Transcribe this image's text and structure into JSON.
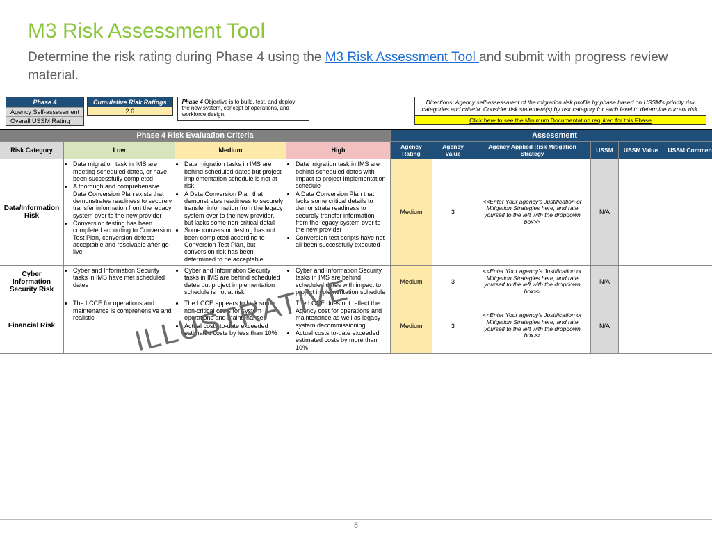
{
  "colors": {
    "accent": "#8cc63f",
    "link": "#1f6fd4",
    "navy": "#1f4e79",
    "grey": "#808080",
    "low": "#d8e4bc",
    "med": "#fde9a9",
    "high": "#f2c0c0"
  },
  "title": "M3 Risk Assessment Tool",
  "subtitle_pre": "Determine the risk rating during Phase 4 using the ",
  "subtitle_link": "M3 Risk Assessment Tool ",
  "subtitle_post": "and submit with progress review material.",
  "phase_box": {
    "header": "Phase 4",
    "r1": "Agency Self-assessment",
    "r2": "Overall USSM Rating"
  },
  "cum_box": {
    "header": "Cumulative Risk Ratings",
    "value": "2.6"
  },
  "obj_box": {
    "label": "Phase 4",
    "text": "Objective is to build, test, and deploy the new system, concept of operations, and workforce design."
  },
  "dir_box": {
    "text": "Directions: Agency self-assessment of the migration risk profile by phase based on USSM's priority risk categories and criteria. Consider risk statement(s) by risk category for each level to determine current risk.",
    "link": "Click here to see the Minimum Documentation required for this Phase"
  },
  "bands": {
    "left": "Phase 4 Risk Evaluation Criteria",
    "right": "Assessment"
  },
  "cols": {
    "cat": "Risk Category",
    "low": "Low",
    "med": "Medium",
    "high": "High",
    "ar": "Agency Rating",
    "av": "Agency Value",
    "mit": "Agency Applied Risk Mitigation Strategy",
    "u": "USSM",
    "uv": "USSM Value",
    "uc": "USSM Comment"
  },
  "mit_placeholder": "<<Enter Your agency's Justification or Mitigation Strategies here, and rate yourself to the left with the dropdown box>>",
  "rows": [
    {
      "cat": "Data/Information Risk",
      "low": "• Data migration task in IMS are meeting scheduled dates, or have been successfully completed\n• A thorough and comprehensive Data Conversion Plan exists that demonstrates readiness to securely transfer information from the legacy system over to the new provider\n• Conversion testing has been completed according to Conversion Test Plan, conversion defects acceptable and resolvable after go-live",
      "med": "• Data migration tasks in IMS are behind scheduled dates but project implementation schedule is not at risk\n• A Data Conversion Plan that demonstrates readiness to securely transfer information from the legacy system over to the new provider, but lacks some non-critical detail\n• Some conversion testing has not been completed according to Conversion Test Plan, but conversion risk has been determined to be acceptable",
      "high": "• Data migration task in IMS are behind scheduled dates with impact to project implementation schedule\n• A Data Conversion Plan that lacks some critical details to demonstrate readiness to securely transfer information from the legacy system over to the new provider\n• Conversion test scripts have not all been successfully executed",
      "ar": "Medium",
      "av": "3",
      "u": "N/A"
    },
    {
      "cat": "Cyber Information Security Risk",
      "low": "• Cyber and Information Security tasks in IMS have met scheduled dates",
      "med": "• Cyber and Information Security tasks in IMS are behind scheduled dates but project implementation schedule is not at risk",
      "high": "• Cyber and Information Security tasks in IMS are behind scheduled dates with impact to project implementation schedule",
      "ar": "Medium",
      "av": "3",
      "u": "N/A"
    },
    {
      "cat": "Financial Risk",
      "low": "• The LCCE for operations and maintenance is comprehensive and realistic",
      "med": "• The LCCE appears to lack some non-critical costs for system operations and maintenance\n• Actual costs to-date exceeded estimated costs by less than 10%",
      "high": "• The LCCE does not reflect the Agency cost for operations and maintenance as well as legacy system decommissioning\n• Actual costs to-date exceeded estimated costs by more than 10%",
      "ar": "Medium",
      "av": "3",
      "u": "N/A"
    }
  ],
  "watermark": "ILLUSTRATIVE",
  "page": "5"
}
